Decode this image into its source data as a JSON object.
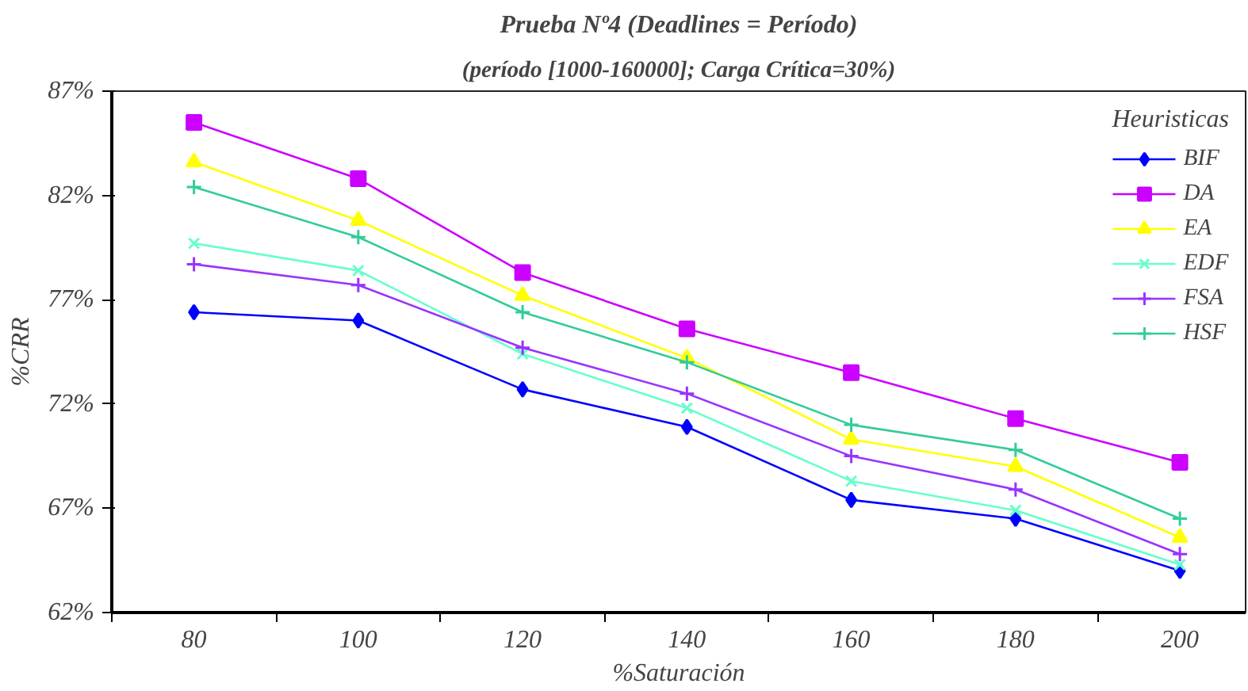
{
  "chart_data": {
    "type": "line",
    "title": "Prueba Nº4 (Deadlines = Período)",
    "subtitle": "(período [1000-160000]; Carga Crítica=30%)",
    "xlabel": "%Saturación",
    "ylabel": "%CRR",
    "legend_title": "Heuristicas",
    "legend": "top right",
    "grid": false,
    "categories": [
      "80",
      "100",
      "120",
      "140",
      "160",
      "180",
      "200"
    ],
    "ylim": [
      62,
      87
    ],
    "yticks": [
      {
        "value": 62,
        "label": "62%"
      },
      {
        "value": 67,
        "label": "67%"
      },
      {
        "value": 72,
        "label": "72%"
      },
      {
        "value": 77,
        "label": "77%"
      },
      {
        "value": 82,
        "label": "82%"
      },
      {
        "value": 87,
        "label": "87%"
      }
    ],
    "series": [
      {
        "name": "BIF",
        "color": "#0000ff",
        "marker": "diamond",
        "values": [
          76.4,
          76.0,
          72.7,
          70.9,
          67.4,
          66.5,
          64.0
        ]
      },
      {
        "name": "DA",
        "color": "#cc00ff",
        "marker": "square",
        "values": [
          85.5,
          82.8,
          78.3,
          75.6,
          73.5,
          71.3,
          69.2
        ]
      },
      {
        "name": "EA",
        "color": "#ffff00",
        "marker": "triangle",
        "values": [
          83.6,
          80.8,
          77.2,
          74.2,
          70.3,
          69.0,
          65.6
        ]
      },
      {
        "name": "EDF",
        "color": "#66ffcc",
        "marker": "x",
        "values": [
          79.7,
          78.4,
          74.4,
          71.8,
          68.3,
          66.9,
          64.3
        ]
      },
      {
        "name": "FSA",
        "color": "#9933ff",
        "marker": "cross",
        "values": [
          78.7,
          77.7,
          74.7,
          72.5,
          69.5,
          67.9,
          64.8
        ]
      },
      {
        "name": "HSF",
        "color": "#33cc99",
        "marker": "cross",
        "values": [
          82.4,
          80.0,
          76.4,
          74.0,
          71.0,
          69.8,
          66.5
        ]
      }
    ]
  }
}
